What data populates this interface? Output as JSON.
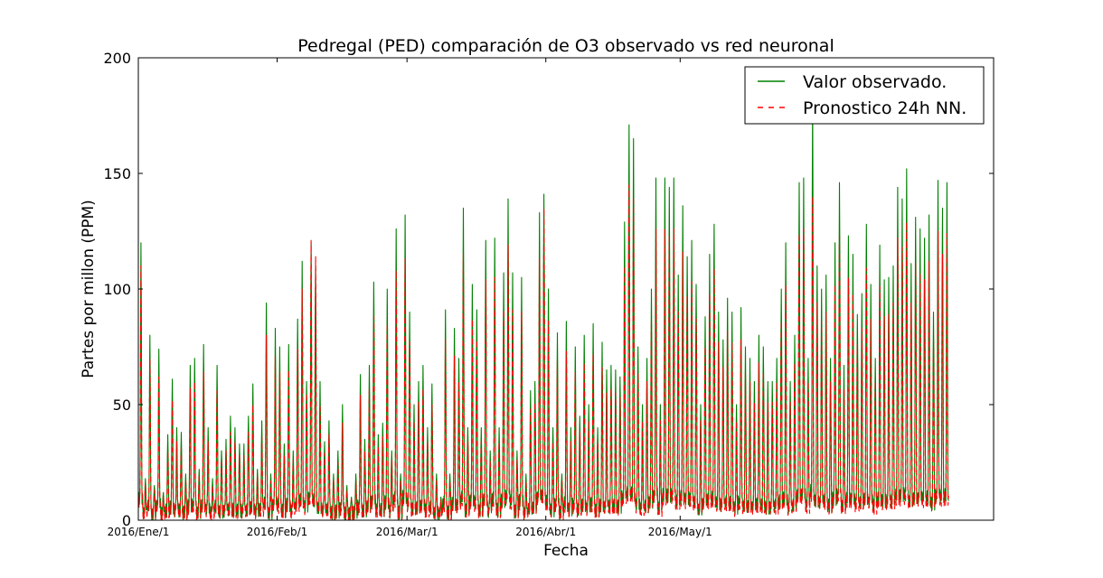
{
  "chart_data": {
    "type": "line",
    "title": "Pedregal (PED) comparación de O3 observado vs red neuronal",
    "xlabel": "Fecha",
    "ylabel": "Partes por millon (PPM)",
    "ylim": [
      0,
      200
    ],
    "yticks": [
      "0",
      "50",
      "100",
      "150",
      "200"
    ],
    "xlim": [
      "2016-01-01",
      "2016-07-10"
    ],
    "xticks": [
      {
        "date": "2016-01-01",
        "label": "2016/Ene/1"
      },
      {
        "date": "2016-02-01",
        "label": "2016/Feb/1"
      },
      {
        "date": "2016-03-01",
        "label": "2016/Mar/1"
      },
      {
        "date": "2016-04-01",
        "label": "2016/Abr/1"
      },
      {
        "date": "2016-05-01",
        "label": "2016/May/1"
      }
    ],
    "data_range": [
      "2016-01-01",
      "2016-06-04"
    ],
    "grid": false,
    "legend_position": "top-right",
    "series": [
      {
        "name": "Valor observado.",
        "color": "#008000",
        "style": "solid",
        "daily_peaks": [
          120,
          18,
          80,
          15,
          74,
          12,
          37,
          61,
          40,
          38,
          20,
          67,
          70,
          22,
          76,
          40,
          18,
          67,
          30,
          35,
          45,
          40,
          33,
          33,
          45,
          59,
          22,
          43,
          94,
          20,
          83,
          75,
          33,
          76,
          30,
          87,
          112,
          60,
          120,
          110,
          60,
          34,
          43,
          20,
          30,
          50,
          15,
          10,
          20,
          63,
          35,
          67,
          103,
          37,
          42,
          100,
          30,
          126,
          20,
          132,
          90,
          50,
          60,
          67,
          40,
          59,
          20,
          10,
          91,
          20,
          83,
          70,
          135,
          40,
          102,
          91,
          40,
          121,
          30,
          122,
          40,
          107,
          139,
          107,
          30,
          105,
          20,
          56,
          60,
          133,
          141,
          100,
          40,
          81,
          20,
          86,
          40,
          75,
          45,
          80,
          50,
          85,
          40,
          77,
          65,
          67,
          65,
          62,
          129,
          171,
          165,
          75,
          50,
          70,
          100,
          148,
          50,
          148,
          144,
          148,
          106,
          136,
          114,
          121,
          102,
          50,
          88,
          115,
          128,
          90,
          78,
          96,
          90,
          50,
          92,
          75,
          70,
          60,
          80,
          75,
          60,
          60,
          70,
          100,
          120,
          60,
          80,
          146,
          148,
          70,
          183,
          110,
          100,
          106,
          70,
          120,
          146,
          67,
          123,
          115,
          89,
          98,
          128,
          102,
          70,
          119,
          104,
          105,
          110,
          144,
          139,
          152,
          111,
          131,
          126,
          122,
          132,
          90,
          147,
          135,
          146
        ]
      },
      {
        "name": "Pronostico 24h NN.",
        "color": "#ff0000",
        "style": "dashed",
        "daily_peaks": [
          110,
          15,
          70,
          13,
          62,
          10,
          30,
          52,
          34,
          31,
          17,
          57,
          60,
          19,
          64,
          34,
          15,
          56,
          25,
          30,
          38,
          34,
          28,
          28,
          38,
          50,
          19,
          36,
          80,
          17,
          71,
          64,
          28,
          65,
          26,
          74,
          100,
          55,
          121,
          114,
          50,
          29,
          37,
          17,
          25,
          42,
          13,
          9,
          17,
          54,
          30,
          57,
          88,
          32,
          36,
          85,
          26,
          108,
          17,
          113,
          77,
          43,
          51,
          57,
          34,
          50,
          17,
          9,
          78,
          17,
          71,
          60,
          115,
          34,
          87,
          78,
          34,
          104,
          26,
          105,
          34,
          91,
          119,
          91,
          26,
          90,
          17,
          48,
          51,
          113,
          135,
          86,
          34,
          69,
          17,
          73,
          34,
          64,
          38,
          68,
          43,
          72,
          34,
          66,
          55,
          57,
          55,
          53,
          110,
          145,
          140,
          64,
          43,
          60,
          86,
          126,
          43,
          126,
          123,
          126,
          90,
          116,
          97,
          103,
          87,
          43,
          75,
          98,
          109,
          77,
          66,
          82,
          77,
          43,
          78,
          64,
          60,
          51,
          68,
          64,
          51,
          51,
          60,
          86,
          102,
          51,
          68,
          124,
          126,
          60,
          140,
          94,
          86,
          90,
          60,
          102,
          124,
          57,
          105,
          98,
          76,
          83,
          109,
          87,
          60,
          101,
          88,
          89,
          94,
          122,
          118,
          129,
          94,
          111,
          107,
          104,
          112,
          77,
          125,
          115,
          124
        ]
      }
    ]
  }
}
